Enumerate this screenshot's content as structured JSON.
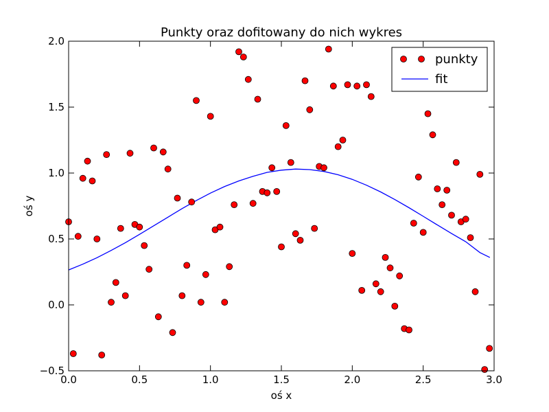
{
  "chart_data": {
    "type": "scatter",
    "title": "Punkty oraz dofitowany do nich wykres",
    "xlabel": "oś x",
    "ylabel": "oś y",
    "xlim": [
      0.0,
      3.0
    ],
    "ylim": [
      -0.5,
      2.0
    ],
    "xticks": [
      "0.0",
      "0.5",
      "1.0",
      "1.5",
      "2.0",
      "2.5",
      "3.0"
    ],
    "yticks": [
      "−0.5",
      "0.0",
      "0.5",
      "1.0",
      "1.5",
      "2.0"
    ],
    "xtick_values": [
      0.0,
      0.5,
      1.0,
      1.5,
      2.0,
      2.5,
      3.0
    ],
    "ytick_values": [
      -0.5,
      0.0,
      0.5,
      1.0,
      1.5,
      2.0
    ],
    "grid": false,
    "legend_position": "top-right",
    "series": [
      {
        "name": "punkty",
        "kind": "markers",
        "color": "#ff0000",
        "edge_color": "#000000",
        "x": [
          0.0,
          0.033,
          0.067,
          0.1,
          0.133,
          0.167,
          0.2,
          0.233,
          0.267,
          0.3,
          0.333,
          0.367,
          0.4,
          0.433,
          0.467,
          0.5,
          0.533,
          0.567,
          0.6,
          0.633,
          0.667,
          0.7,
          0.733,
          0.767,
          0.8,
          0.833,
          0.867,
          0.9,
          0.933,
          0.967,
          1.0,
          1.033,
          1.067,
          1.1,
          1.133,
          1.167,
          1.2,
          1.233,
          1.267,
          1.3,
          1.333,
          1.367,
          1.4,
          1.433,
          1.467,
          1.5,
          1.533,
          1.567,
          1.6,
          1.633,
          1.667,
          1.7,
          1.733,
          1.767,
          1.8,
          1.833,
          1.867,
          1.9,
          1.933,
          1.967,
          2.0,
          2.033,
          2.067,
          2.1,
          2.133,
          2.167,
          2.2,
          2.233,
          2.267,
          2.3,
          2.333,
          2.367,
          2.4,
          2.433,
          2.467,
          2.5,
          2.533,
          2.567,
          2.6,
          2.633,
          2.667,
          2.7,
          2.733,
          2.767,
          2.8,
          2.833,
          2.867,
          2.9,
          2.933,
          2.967
        ],
        "y": [
          0.63,
          -0.37,
          0.52,
          0.96,
          1.09,
          0.94,
          0.5,
          -0.38,
          1.14,
          0.02,
          0.17,
          0.58,
          0.07,
          1.15,
          0.61,
          0.59,
          0.45,
          0.27,
          1.19,
          -0.09,
          1.16,
          1.03,
          -0.21,
          0.81,
          0.07,
          0.3,
          0.78,
          1.55,
          0.02,
          0.23,
          1.43,
          0.57,
          0.59,
          0.02,
          0.29,
          0.76,
          1.92,
          1.88,
          1.71,
          0.77,
          1.56,
          0.86,
          0.85,
          1.04,
          0.86,
          0.44,
          1.36,
          1.08,
          0.54,
          0.49,
          1.7,
          1.48,
          0.58,
          1.05,
          1.04,
          1.94,
          1.66,
          1.2,
          1.25,
          1.67,
          0.39,
          1.66,
          0.11,
          1.67,
          1.58,
          0.16,
          0.1,
          0.36,
          0.28,
          -0.01,
          0.22,
          -0.18,
          -0.19,
          0.62,
          0.97,
          0.55,
          1.45,
          1.29,
          0.88,
          0.76,
          0.87,
          0.68,
          1.08,
          0.63,
          0.65,
          0.51,
          0.1,
          0.99,
          -0.49,
          -0.33
        ]
      },
      {
        "name": "fit",
        "kind": "line",
        "color": "#0000ff",
        "x": [
          0.0,
          0.1,
          0.2,
          0.3,
          0.4,
          0.5,
          0.6,
          0.7,
          0.8,
          0.9,
          1.0,
          1.1,
          1.2,
          1.3,
          1.4,
          1.5,
          1.6,
          1.7,
          1.8,
          1.9,
          2.0,
          2.1,
          2.2,
          2.3,
          2.4,
          2.5,
          2.6,
          2.7,
          2.8,
          2.9,
          2.97
        ],
        "y": [
          0.265,
          0.309,
          0.358,
          0.413,
          0.472,
          0.535,
          0.6,
          0.665,
          0.73,
          0.791,
          0.848,
          0.898,
          0.94,
          0.975,
          1.005,
          1.022,
          1.03,
          1.026,
          1.012,
          0.987,
          0.952,
          0.908,
          0.857,
          0.799,
          0.737,
          0.672,
          0.606,
          0.541,
          0.479,
          0.397,
          0.36
        ]
      }
    ]
  }
}
